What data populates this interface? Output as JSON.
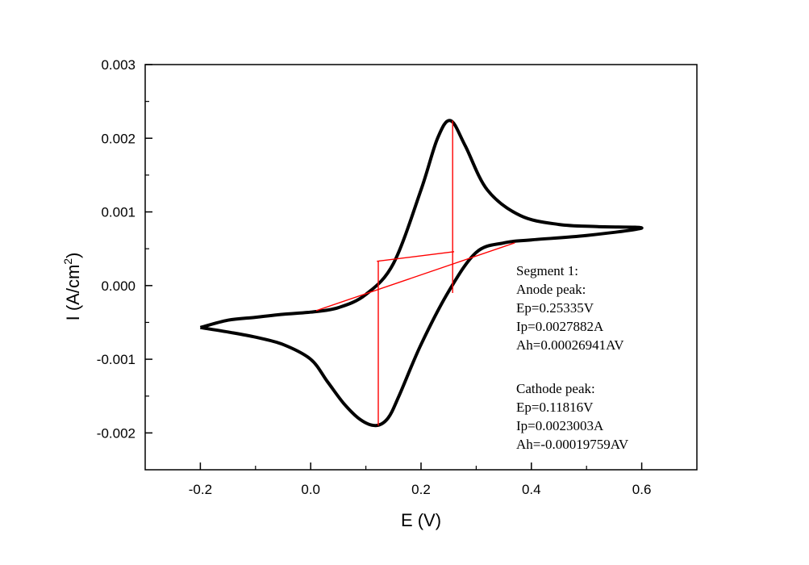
{
  "chart_data": {
    "type": "line",
    "title": "",
    "xlabel": "E (V)",
    "ylabel": "I (A/cm",
    "ylabel_sup": "2",
    "ylabel_close": ")",
    "xlim": [
      -0.3,
      0.7
    ],
    "ylim": [
      -0.0025,
      0.003
    ],
    "xticks": [
      -0.2,
      0.0,
      0.2,
      0.4,
      0.6
    ],
    "xtick_labels": [
      "-0.2",
      "0.0",
      "0.2",
      "0.4",
      "0.6"
    ],
    "yticks": [
      -0.002,
      -0.001,
      0.0,
      0.001,
      0.002,
      0.003
    ],
    "ytick_labels": [
      "-0.002",
      "-0.001",
      "0.000",
      "0.001",
      "0.002",
      "0.003"
    ],
    "grid": false,
    "series": [
      {
        "color": "#000000",
        "points": [
          [
            -0.2,
            -0.00057
          ],
          [
            -0.15,
            -0.00047
          ],
          [
            -0.1,
            -0.00043
          ],
          [
            -0.05,
            -0.00039
          ],
          [
            0.0,
            -0.00036
          ],
          [
            0.05,
            -0.0003
          ],
          [
            0.1,
            -0.00012
          ],
          [
            0.15,
            0.0003
          ],
          [
            0.2,
            0.0013
          ],
          [
            0.23,
            0.002
          ],
          [
            0.25335,
            0.00224
          ],
          [
            0.28,
            0.0019
          ],
          [
            0.32,
            0.0013
          ],
          [
            0.38,
            0.00095
          ],
          [
            0.45,
            0.00083
          ],
          [
            0.52,
            0.0008
          ],
          [
            0.6,
            0.00078
          ],
          [
            0.5,
            0.00068
          ],
          [
            0.4,
            0.00062
          ],
          [
            0.35,
            0.00058
          ],
          [
            0.3,
            0.00045
          ],
          [
            0.25,
            -8e-05
          ],
          [
            0.2,
            -0.0008
          ],
          [
            0.16,
            -0.0015
          ],
          [
            0.14,
            -0.0018
          ],
          [
            0.11816,
            -0.0019
          ],
          [
            0.09,
            -0.00182
          ],
          [
            0.06,
            -0.0016
          ],
          [
            0.03,
            -0.0013
          ],
          [
            0.0,
            -0.001
          ],
          [
            -0.05,
            -0.0008
          ],
          [
            -0.1,
            -0.0007
          ],
          [
            -0.15,
            -0.00063
          ],
          [
            -0.2,
            -0.00057
          ]
        ]
      }
    ],
    "anode_baseline": {
      "from": [
        0.01,
        -0.00034
      ],
      "to": [
        0.37,
        0.00058
      ]
    },
    "cathode_baseline": {
      "from": [
        0.12,
        0.00033
      ],
      "to": [
        0.26,
        0.00046
      ]
    },
    "anode_peak_drop": {
      "x": 0.2573,
      "y_top": 0.00224,
      "y_bottom": -0.0001
    },
    "cathode_peak_drop": {
      "x": 0.1225,
      "y_top": 0.00033,
      "y_bottom": -0.0019
    },
    "annotations": [
      "Segment 1:",
      "Anode peak:",
      "Ep=0.25335V",
      "Ip=0.0027882A",
      "Ah=0.00026941AV",
      "",
      "Cathode peak:",
      "Ep=0.11816V",
      "Ip=0.0023003A",
      "Ah=-0.00019759AV"
    ],
    "colors": {
      "curve": "#000000",
      "baseline": "#ff0000"
    }
  }
}
